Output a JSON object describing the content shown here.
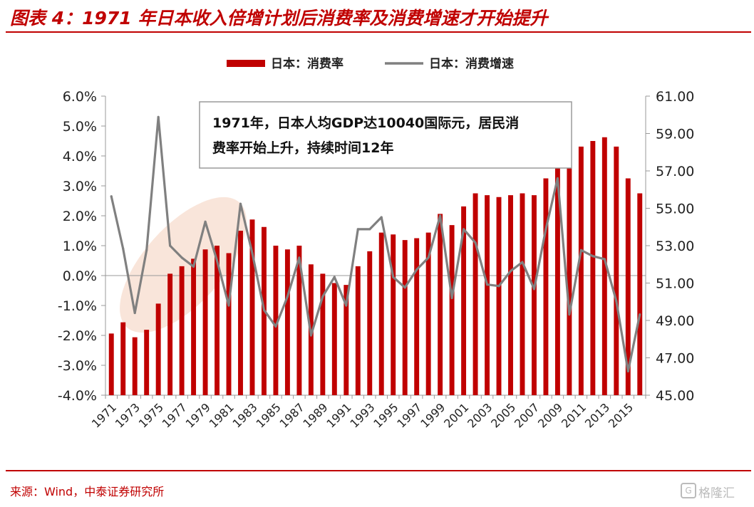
{
  "header": {
    "title": "图表 4：1971 年日本收入倍增计划后消费率及消费增速才开始提升"
  },
  "footer": {
    "source": "来源：Wind，中泰证券研究所",
    "watermark_glyph": "G",
    "watermark_text": "格隆汇"
  },
  "colors": {
    "bar": "#c00000",
    "line": "#808080",
    "title": "#c00000",
    "highlight": "#f7dccd"
  },
  "chart_data": {
    "type": "bar+line",
    "legend": {
      "position": "top",
      "entries": [
        "日本：消费率",
        "日本：消费增速"
      ]
    },
    "annotation": {
      "line1": "1971年，日本人均GDP达10040国际元，居民消",
      "line2": "费率开始上升，持续时间12年"
    },
    "x": [
      1971,
      1972,
      1973,
      1974,
      1975,
      1976,
      1977,
      1978,
      1979,
      1980,
      1981,
      1982,
      1983,
      1984,
      1985,
      1986,
      1987,
      1988,
      1989,
      1990,
      1991,
      1992,
      1993,
      1994,
      1995,
      1996,
      1997,
      1998,
      1999,
      2000,
      2001,
      2002,
      2003,
      2004,
      2005,
      2006,
      2007,
      2008,
      2009,
      2010,
      2011,
      2012,
      2013,
      2014,
      2015,
      2016
    ],
    "x_tick_labels": [
      "1971",
      "1973",
      "1975",
      "1977",
      "1979",
      "1981",
      "1983",
      "1985",
      "1987",
      "1989",
      "1991",
      "1993",
      "1995",
      "1997",
      "1999",
      "2001",
      "2003",
      "2005",
      "2007",
      "2009",
      "2011",
      "2013",
      "2015"
    ],
    "left_axis": {
      "ylim": [
        -4.0,
        6.0
      ],
      "tick_labels": [
        "-4.0%",
        "-3.0%",
        "-2.0%",
        "-1.0%",
        "0.0%",
        "1.0%",
        "2.0%",
        "3.0%",
        "4.0%",
        "5.0%",
        "6.0%"
      ]
    },
    "right_axis": {
      "ylim": [
        45.0,
        61.0
      ],
      "tick_labels": [
        "45.00",
        "47.00",
        "49.00",
        "51.00",
        "53.00",
        "55.00",
        "57.00",
        "59.00",
        "61.00"
      ]
    },
    "series": [
      {
        "name": "日本：消费率",
        "axis": "right",
        "kind": "bar",
        "values": [
          48.3,
          48.9,
          48.1,
          48.5,
          49.9,
          51.5,
          51.9,
          52.3,
          52.8,
          53.0,
          52.6,
          53.8,
          54.4,
          54.0,
          53.0,
          52.8,
          53.0,
          52.0,
          51.5,
          51.0,
          50.9,
          51.9,
          52.7,
          53.7,
          53.6,
          53.3,
          53.4,
          53.7,
          54.7,
          54.1,
          55.1,
          55.8,
          55.7,
          55.6,
          55.7,
          55.8,
          55.7,
          56.6,
          58.5,
          57.8,
          58.3,
          58.6,
          58.8,
          58.3,
          56.6,
          55.8
        ]
      },
      {
        "name": "日本：消费增速",
        "axis": "left",
        "kind": "line",
        "values": [
          2.65,
          0.9,
          -1.25,
          0.85,
          5.3,
          1.0,
          0.6,
          0.3,
          1.8,
          0.5,
          -1.0,
          2.4,
          0.75,
          -1.15,
          -1.7,
          -0.7,
          0.6,
          -2.0,
          -0.7,
          -0.05,
          -1.0,
          1.55,
          1.55,
          1.95,
          -0.05,
          -0.4,
          0.2,
          0.6,
          2.0,
          -0.75,
          1.55,
          1.1,
          -0.3,
          -0.35,
          0.15,
          0.45,
          -0.45,
          1.55,
          3.25,
          -1.3,
          0.85,
          0.65,
          0.55,
          -0.85,
          -3.2,
          -1.3
        ]
      }
    ]
  }
}
